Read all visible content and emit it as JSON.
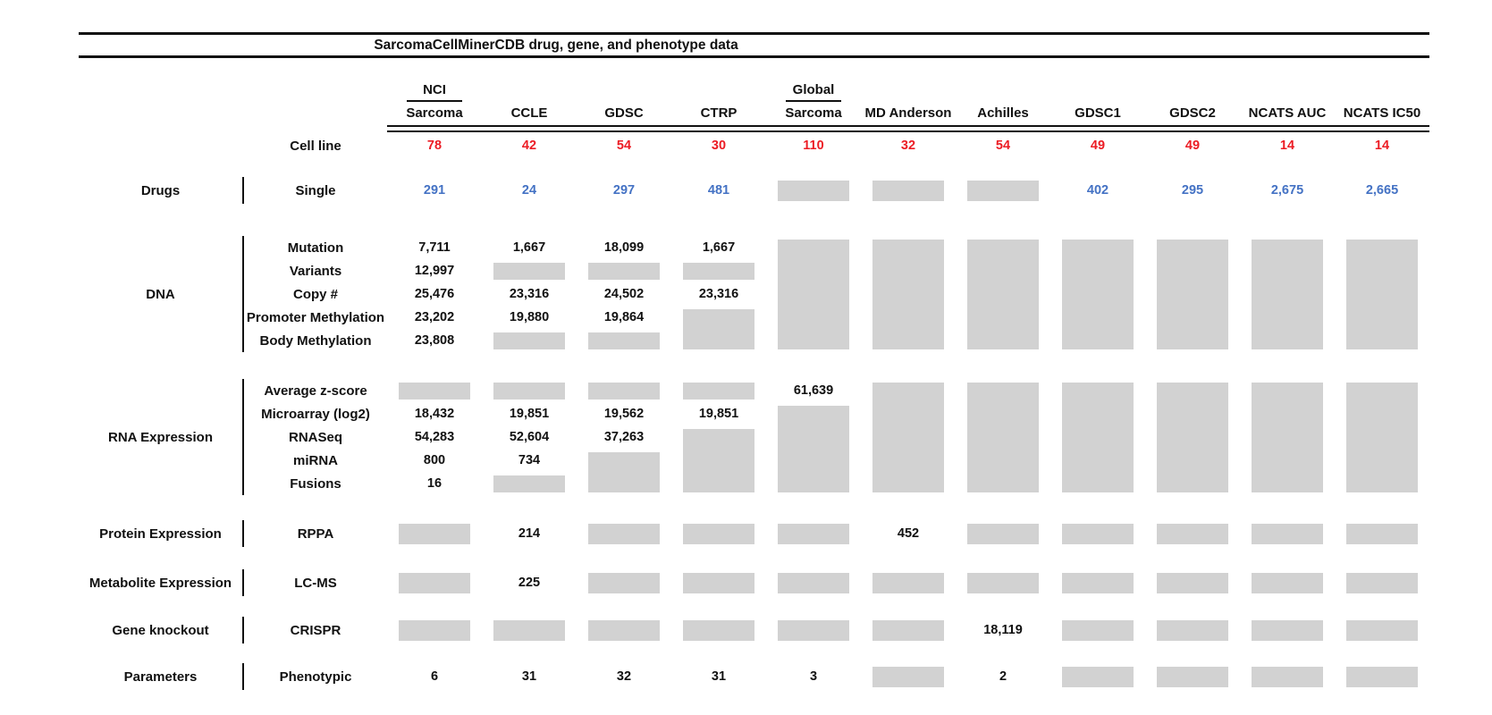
{
  "figure": {
    "title": "SarcomaCellMinerCDB drug, gene, and phenotype data"
  },
  "colors": {
    "red": "#EC1C24",
    "blue": "#4472C4",
    "gray": "#D2D2D2",
    "line": "#111111"
  },
  "chart_data": {
    "type": "table",
    "title": "SarcomaCellMinerCDB drug, gene, and phenotype data",
    "columns": [
      {
        "line1": "NCI",
        "line2": "Sarcoma"
      },
      {
        "line1": "CCLE"
      },
      {
        "line1": "GDSC"
      },
      {
        "line1": "CTRP"
      },
      {
        "line1": "Global",
        "line2": "Sarcoma"
      },
      {
        "line1": "MD Anderson"
      },
      {
        "line1": "Achilles"
      },
      {
        "line1": "GDSC1"
      },
      {
        "line1": "GDSC2"
      },
      {
        "line1": "NCATS AUC"
      },
      {
        "line1": "NCATS IC50"
      }
    ],
    "cell_line_row": {
      "label": "Cell line",
      "color": "red",
      "values": [
        "78",
        "42",
        "54",
        "30",
        "110",
        "32",
        "54",
        "49",
        "49",
        "14",
        "14"
      ]
    },
    "sections": [
      {
        "category": "Drugs",
        "rows": [
          {
            "label": "Single",
            "color": "blue",
            "cells": [
              "291",
              "24",
              "297",
              "481",
              null,
              null,
              null,
              "402",
              "295",
              "2,675",
              "2,665"
            ]
          }
        ]
      },
      {
        "category": "DNA",
        "rows": [
          {
            "label": "Mutation",
            "cells": [
              "7,711",
              "1,667",
              "18,099",
              "1,667",
              null,
              null,
              null,
              null,
              null,
              null,
              null
            ]
          },
          {
            "label": "Variants",
            "cells": [
              "12,997",
              null,
              null,
              null,
              null,
              null,
              null,
              null,
              null,
              null,
              null
            ]
          },
          {
            "label": "Copy #",
            "cells": [
              "25,476",
              "23,316",
              "24,502",
              "23,316",
              null,
              null,
              null,
              null,
              null,
              null,
              null
            ]
          },
          {
            "label": "Promoter Methylation",
            "cells": [
              "23,202",
              "19,880",
              "19,864",
              null,
              null,
              null,
              null,
              null,
              null,
              null,
              null
            ]
          },
          {
            "label": "Body Methylation",
            "cells": [
              "23,808",
              null,
              null,
              null,
              null,
              null,
              null,
              null,
              null,
              null,
              null
            ]
          }
        ]
      },
      {
        "category": "RNA Expression",
        "rows": [
          {
            "label": "Average z-score",
            "cells": [
              null,
              null,
              null,
              null,
              "61,639",
              null,
              null,
              null,
              null,
              null,
              null
            ]
          },
          {
            "label": "Microarray (log2)",
            "cells": [
              "18,432",
              "19,851",
              "19,562",
              "19,851",
              null,
              null,
              null,
              null,
              null,
              null,
              null
            ]
          },
          {
            "label": "RNASeq",
            "cells": [
              "54,283",
              "52,604",
              "37,263",
              null,
              null,
              null,
              null,
              null,
              null,
              null,
              null
            ]
          },
          {
            "label": "miRNA",
            "cells": [
              "800",
              "734",
              null,
              null,
              null,
              null,
              null,
              null,
              null,
              null,
              null
            ]
          },
          {
            "label": "Fusions",
            "cells": [
              "16",
              null,
              null,
              null,
              null,
              null,
              null,
              null,
              null,
              null,
              null
            ]
          }
        ]
      },
      {
        "category": "Protein Expression",
        "rows": [
          {
            "label": "RPPA",
            "cells": [
              null,
              "214",
              null,
              null,
              null,
              "452",
              null,
              null,
              null,
              null,
              null
            ]
          }
        ]
      },
      {
        "category": "Metabolite Expression",
        "rows": [
          {
            "label": "LC-MS",
            "cells": [
              null,
              "225",
              null,
              null,
              null,
              null,
              null,
              null,
              null,
              null,
              null
            ]
          }
        ]
      },
      {
        "category": "Gene knockout",
        "rows": [
          {
            "label": "CRISPR",
            "cells": [
              null,
              null,
              null,
              null,
              null,
              null,
              "18,119",
              null,
              null,
              null,
              null
            ]
          }
        ]
      },
      {
        "category": "Parameters",
        "rows": [
          {
            "label": "Phenotypic",
            "cells": [
              "6",
              "31",
              "32",
              "31",
              "3",
              null,
              "2",
              null,
              null,
              null,
              null
            ]
          }
        ]
      }
    ]
  }
}
